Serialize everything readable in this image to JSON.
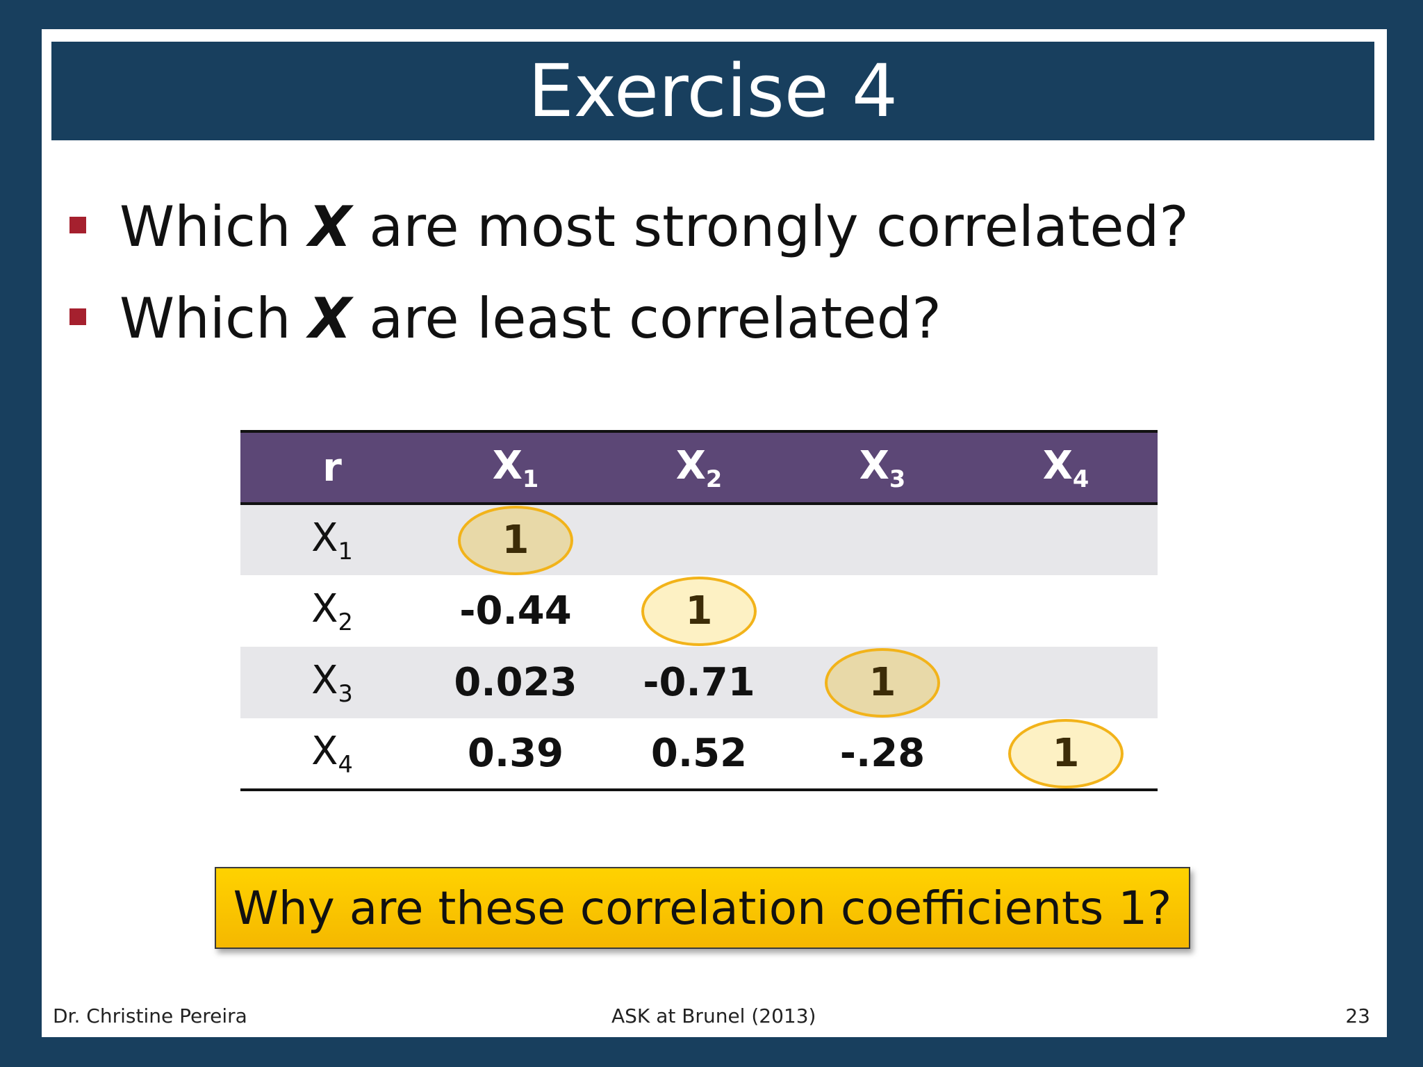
{
  "title": "Exercise 4",
  "bullets": [
    {
      "pre": "Which ",
      "x": "X",
      "post": " are most strongly correlated?"
    },
    {
      "pre": "Which ",
      "x": "X",
      "post": " are least correlated?"
    }
  ],
  "table": {
    "corner": "r",
    "var_letter": "X",
    "indices": [
      "1",
      "2",
      "3",
      "4"
    ],
    "rows": [
      {
        "idx": "1",
        "cells": [
          "1",
          "",
          "",
          ""
        ]
      },
      {
        "idx": "2",
        "cells": [
          "-0.44",
          "1",
          "",
          ""
        ]
      },
      {
        "idx": "3",
        "cells": [
          "0.023",
          "-0.71",
          "1",
          ""
        ]
      },
      {
        "idx": "4",
        "cells": [
          "0.39",
          "0.52",
          "-.28",
          "1"
        ]
      }
    ]
  },
  "callout": "Why are these correlation coefficients 1?",
  "footer": {
    "author": "Dr. Christine Pereira",
    "event": "ASK at Brunel (2013)",
    "page": "23"
  },
  "colors": {
    "frame": "#183f5e",
    "header_row": "#5c4776",
    "bullet": "#a5202e",
    "oval_border": "#f2b31a",
    "callout": "#ffd200"
  }
}
